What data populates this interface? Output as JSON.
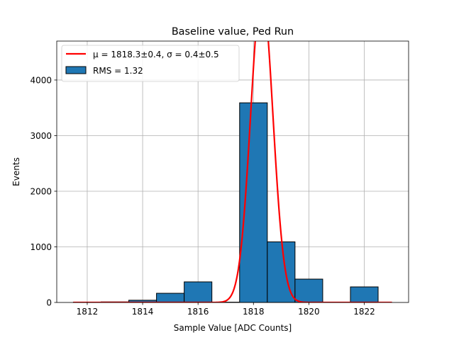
{
  "chart_data": {
    "type": "bar",
    "title": "Baseline value, Ped Run",
    "xlabel": "Sample Value [ADC Counts]",
    "ylabel": "Events",
    "xlim": [
      1810.9,
      1823.6
    ],
    "ylim": [
      0,
      4700
    ],
    "xticks": [
      1812,
      1814,
      1816,
      1818,
      1820,
      1822
    ],
    "yticks": [
      0,
      1000,
      2000,
      3000,
      4000
    ],
    "grid": true,
    "legend_position": "top-left",
    "histogram": {
      "name": "RMS = 1.32",
      "color": "#1f77b4",
      "edge_color": "#000000",
      "bin_width": 1.0,
      "bins": [
        {
          "left": 1811.5,
          "value": 5
        },
        {
          "left": 1812.5,
          "value": 10
        },
        {
          "left": 1813.5,
          "value": 40
        },
        {
          "left": 1814.5,
          "value": 165
        },
        {
          "left": 1815.5,
          "value": 370
        },
        {
          "left": 1816.5,
          "value": 5
        },
        {
          "left": 1817.5,
          "value": 3590
        },
        {
          "left": 1818.5,
          "value": 1090
        },
        {
          "left": 1819.5,
          "value": 420
        },
        {
          "left": 1820.5,
          "value": 5
        },
        {
          "left": 1821.5,
          "value": 280
        }
      ]
    },
    "fit": {
      "label": "μ = 1818.3±0.4, σ = 0.4±0.5",
      "color": "#ff0000",
      "function": "gaussian",
      "mu": 1818.3,
      "sigma": 0.4,
      "amplitude": 5600,
      "x_range": [
        1811.5,
        1823.0
      ]
    }
  }
}
